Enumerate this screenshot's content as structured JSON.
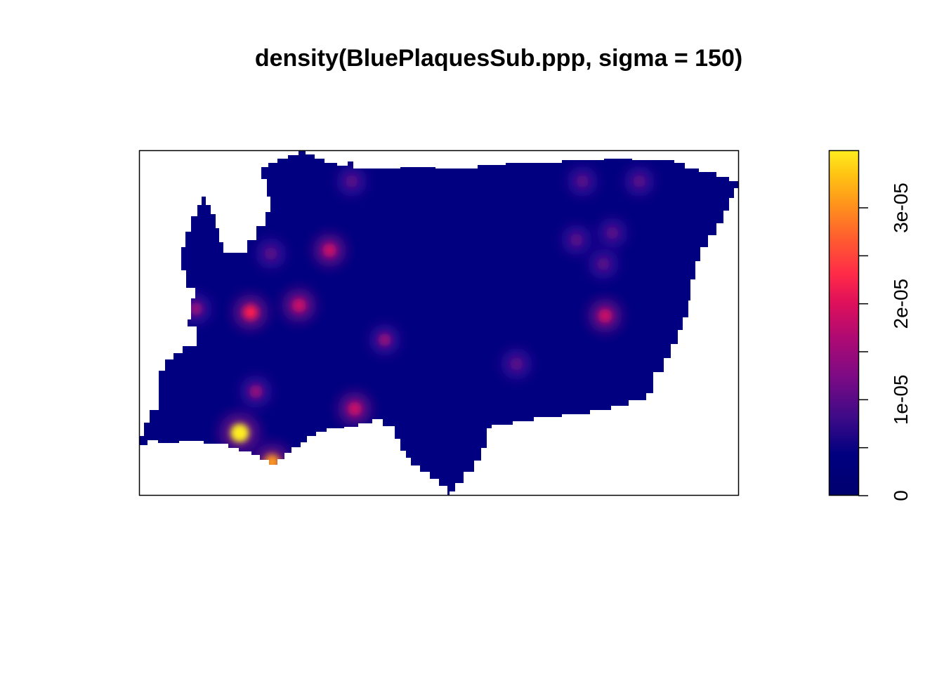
{
  "chart_data": {
    "type": "heatmap",
    "title": "density(BluePlaquesSub.ppp, sigma = 150)",
    "xlabel": "",
    "ylabel": "",
    "axes_shown": false,
    "colorbar": {
      "range": [
        0,
        3.6e-05
      ],
      "ticks": [
        {
          "value": 0,
          "label": "0"
        },
        {
          "value": 5e-06,
          "label": ""
        },
        {
          "value": 1e-05,
          "label": "1e-05"
        },
        {
          "value": 1.5e-05,
          "label": ""
        },
        {
          "value": 2e-05,
          "label": "2e-05"
        },
        {
          "value": 2.5e-05,
          "label": ""
        },
        {
          "value": 3e-05,
          "label": "3e-05"
        }
      ],
      "colormap": [
        "#000080",
        "#1a0a85",
        "#5b0a85",
        "#9a0a7a",
        "#cf0a66",
        "#ff1a4d",
        "#ff5a30",
        "#ff9a1a",
        "#ffcc10",
        "#ffee20"
      ]
    },
    "window_boundary_note": "irregular polygon window (London sub-borough)",
    "hotspots_density": [
      {
        "x": 0.168,
        "y": 0.18,
        "density": 3.5e-05
      },
      {
        "x": 0.222,
        "y": 0.095,
        "density": 2.6e-05
      },
      {
        "x": 0.186,
        "y": 0.53,
        "density": 2e-05
      },
      {
        "x": 0.267,
        "y": 0.55,
        "density": 1.6e-05
      },
      {
        "x": 0.36,
        "y": 0.25,
        "density": 1.6e-05
      },
      {
        "x": 0.318,
        "y": 0.71,
        "density": 1.4e-05
      },
      {
        "x": 0.778,
        "y": 0.52,
        "density": 1.6e-05
      },
      {
        "x": 0.195,
        "y": 0.3,
        "density": 1.2e-05
      },
      {
        "x": 0.41,
        "y": 0.45,
        "density": 1e-05
      },
      {
        "x": 0.095,
        "y": 0.54,
        "density": 1e-05
      },
      {
        "x": 0.63,
        "y": 0.38,
        "density": 9e-06
      },
      {
        "x": 0.22,
        "y": 0.7,
        "density": 8e-06
      },
      {
        "x": 0.355,
        "y": 0.91,
        "density": 7e-06
      },
      {
        "x": 0.74,
        "y": 0.91,
        "density": 7e-06
      },
      {
        "x": 0.835,
        "y": 0.91,
        "density": 7e-06
      },
      {
        "x": 0.79,
        "y": 0.76,
        "density": 7e-06
      },
      {
        "x": 0.73,
        "y": 0.74,
        "density": 7e-06
      },
      {
        "x": 0.775,
        "y": 0.67,
        "density": 7e-06
      }
    ]
  }
}
